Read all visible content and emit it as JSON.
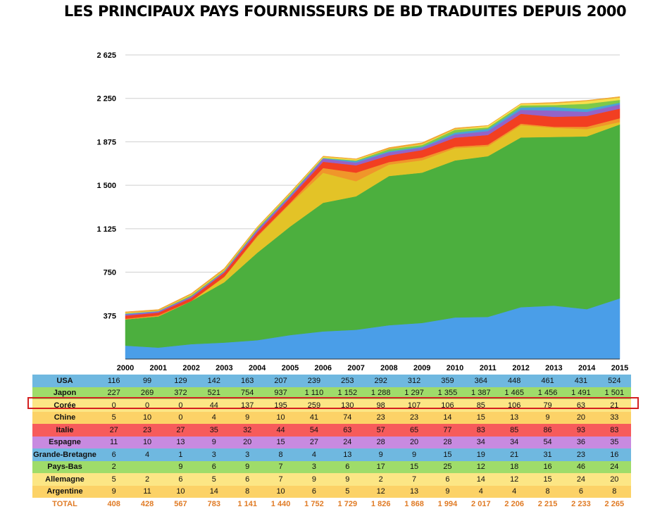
{
  "chart_data": {
    "type": "area",
    "title": "LES PRINCIPAUX PAYS FOURNISSEURS DE BD TRADUITES DEPUIS 2000",
    "stacked": true,
    "x": [
      "2000",
      "2001",
      "2002",
      "2003",
      "2004",
      "2005",
      "2006",
      "2007",
      "2008",
      "2009",
      "2010",
      "2011",
      "2012",
      "2013",
      "2014",
      "2015"
    ],
    "ylim": [
      0,
      2625
    ],
    "yticks": [
      "375",
      "750",
      "1 125",
      "1 500",
      "1 875",
      "2 250",
      "2 625"
    ],
    "ytick_values": [
      375,
      750,
      1125,
      1500,
      1875,
      2250,
      2625
    ],
    "grid": true,
    "series": [
      {
        "name": "USA",
        "color": "#4a9ee8",
        "values": [
          116,
          99,
          129,
          142,
          163,
          207,
          239,
          253,
          292,
          312,
          359,
          364,
          448,
          461,
          431,
          524
        ],
        "cells": [
          "116",
          "99",
          "129",
          "142",
          "163",
          "207",
          "239",
          "253",
          "292",
          "312",
          "359",
          "364",
          "448",
          "461",
          "431",
          "524"
        ]
      },
      {
        "name": "Japon",
        "color": "#4caf3e",
        "values": [
          227,
          269,
          372,
          521,
          754,
          937,
          1110,
          1152,
          1288,
          1297,
          1355,
          1387,
          1465,
          1456,
          1491,
          1501
        ],
        "cells": [
          "227",
          "269",
          "372",
          "521",
          "754",
          "937",
          "1 110",
          "1 152",
          "1 288",
          "1 297",
          "1 355",
          "1 387",
          "1 465",
          "1 456",
          "1 491",
          "1 501"
        ]
      },
      {
        "name": "Corée",
        "color": "#e3c327",
        "values": [
          0,
          0,
          0,
          44,
          137,
          195,
          259,
          130,
          98,
          107,
          106,
          85,
          106,
          79,
          63,
          21
        ],
        "cells": [
          "0",
          "0",
          "0",
          "44",
          "137",
          "195",
          "259",
          "130",
          "98",
          "107",
          "106",
          "85",
          "106",
          "79",
          "63",
          "21"
        ]
      },
      {
        "name": "Chine",
        "color": "#f0962a",
        "values": [
          5,
          10,
          0,
          4,
          9,
          10,
          41,
          74,
          23,
          23,
          14,
          15,
          13,
          9,
          20,
          33
        ],
        "cells": [
          "5",
          "10",
          "0",
          "4",
          "9",
          "10",
          "41",
          "74",
          "23",
          "23",
          "14",
          "15",
          "13",
          "9",
          "20",
          "33"
        ]
      },
      {
        "name": "Italie",
        "color": "#f23f21",
        "values": [
          27,
          23,
          27,
          35,
          32,
          44,
          54,
          63,
          57,
          65,
          77,
          83,
          85,
          86,
          93,
          83
        ],
        "cells": [
          "27",
          "23",
          "27",
          "35",
          "32",
          "44",
          "54",
          "63",
          "57",
          "65",
          "77",
          "83",
          "85",
          "86",
          "93",
          "83"
        ]
      },
      {
        "name": "Espagne",
        "color": "#9364c8",
        "values": [
          11,
          10,
          13,
          9,
          20,
          15,
          27,
          24,
          28,
          20,
          28,
          34,
          34,
          54,
          36,
          35
        ],
        "cells": [
          "11",
          "10",
          "13",
          "9",
          "20",
          "15",
          "27",
          "24",
          "28",
          "20",
          "28",
          "34",
          "34",
          "54",
          "36",
          "35"
        ]
      },
      {
        "name": "Grande-Bretagne",
        "color": "#4aa3d6",
        "values": [
          6,
          4,
          1,
          3,
          3,
          8,
          4,
          13,
          9,
          9,
          15,
          19,
          21,
          31,
          23,
          16
        ],
        "cells": [
          "6",
          "4",
          "1",
          "3",
          "3",
          "8",
          "4",
          "13",
          "9",
          "9",
          "15",
          "19",
          "21",
          "31",
          "23",
          "16"
        ]
      },
      {
        "name": "Pays-Bas",
        "color": "#7dc94a",
        "values": [
          2,
          0,
          9,
          6,
          9,
          7,
          3,
          6,
          17,
          15,
          25,
          12,
          18,
          16,
          46,
          24
        ],
        "cells": [
          "2",
          "",
          "9",
          "6",
          "9",
          "7",
          "3",
          "6",
          "17",
          "15",
          "25",
          "12",
          "18",
          "16",
          "46",
          "24"
        ]
      },
      {
        "name": "Allemagne",
        "color": "#f5e04c",
        "values": [
          5,
          2,
          6,
          5,
          6,
          7,
          9,
          9,
          2,
          7,
          6,
          14,
          12,
          15,
          24,
          20
        ],
        "cells": [
          "5",
          "2",
          "6",
          "5",
          "6",
          "7",
          "9",
          "9",
          "2",
          "7",
          "6",
          "14",
          "12",
          "15",
          "24",
          "20"
        ]
      },
      {
        "name": "Argentine",
        "color": "#f0a835",
        "values": [
          9,
          11,
          10,
          14,
          8,
          10,
          6,
          5,
          12,
          13,
          9,
          4,
          4,
          8,
          6,
          8
        ],
        "cells": [
          "9",
          "11",
          "10",
          "14",
          "8",
          "10",
          "6",
          "5",
          "12",
          "13",
          "9",
          "4",
          "4",
          "8",
          "6",
          "8"
        ]
      }
    ],
    "total": {
      "label": "TOTAL",
      "values": [
        408,
        428,
        567,
        783,
        1141,
        1440,
        1752,
        1729,
        1826,
        1868,
        1994,
        2017,
        2206,
        2215,
        2233,
        2265
      ],
      "cells": [
        "408",
        "428",
        "567",
        "783",
        "1 141",
        "1 440",
        "1 752",
        "1 729",
        "1 826",
        "1 868",
        "1 994",
        "2 017",
        "2 206",
        "2 215",
        "2 233",
        "2 265"
      ]
    },
    "highlighted_series": "Corée"
  },
  "table_row_colors": [
    "#6fb8e0",
    "#9fdc6a",
    "#fce685",
    "#fcd267",
    "#f75b5b",
    "#c88ae0",
    "#6fb8e0",
    "#9fdc6a",
    "#fce685",
    "#fcd267"
  ],
  "highlight_color": "#d42020",
  "total_color": "#e07b25"
}
